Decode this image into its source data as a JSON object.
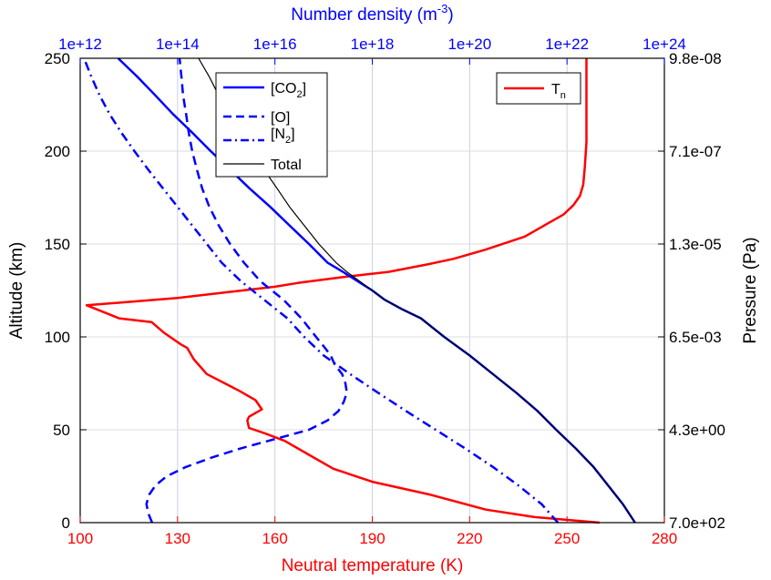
{
  "colors": {
    "temperature": "#ff0000",
    "density": "#0000ff",
    "total": "#000000",
    "axis": "#000000"
  },
  "chart_data": {
    "type": "line",
    "axes": {
      "left": {
        "label": "Altitude (km)",
        "range": [
          0,
          250
        ],
        "ticks": [
          "0",
          "50",
          "100",
          "150",
          "200",
          "250"
        ]
      },
      "right": {
        "label": "Pressure (Pa)",
        "ticks": [
          "7.0e+02",
          "4.3e+00",
          "6.5e-03",
          "1.3e-05",
          "7.1e-07",
          "9.8e-08"
        ]
      },
      "bottom": {
        "label": "Neutral temperature (K)",
        "range": [
          100,
          280
        ],
        "ticks": [
          "100",
          "130",
          "160",
          "190",
          "220",
          "250",
          "280"
        ]
      },
      "top": {
        "label_base": "Number density (m",
        "label_sup": "-3",
        "label_end": ")",
        "scale": "log",
        "range": [
          1000000000000.0,
          1e+24
        ],
        "ticks": [
          "1e+12",
          "1e+14",
          "1e+16",
          "1e+18",
          "1e+20",
          "1e+22",
          "1e+24"
        ]
      }
    },
    "grid": true,
    "legends": [
      {
        "position": "top-center",
        "entries": [
          {
            "series": "co2",
            "base": "[CO",
            "sub": "2",
            "end": "]"
          },
          {
            "series": "o",
            "base": "[O]",
            "sub": "",
            "end": ""
          },
          {
            "series": "n2",
            "base": "[N",
            "sub": "2",
            "end": "]"
          },
          {
            "series": "total",
            "base": "Total",
            "sub": "",
            "end": ""
          }
        ]
      },
      {
        "position": "top-right",
        "entries": [
          {
            "series": "tn",
            "base": "T",
            "sub": "n",
            "end": ""
          }
        ]
      }
    ],
    "series": [
      {
        "id": "tn",
        "axis": "temperature",
        "color": "#ff0000",
        "dash": "solid",
        "width": 2.5,
        "points": [
          [
            260,
            0
          ],
          [
            240,
            3
          ],
          [
            225,
            7
          ],
          [
            208,
            15
          ],
          [
            190,
            22
          ],
          [
            178,
            29
          ],
          [
            170,
            37
          ],
          [
            163,
            44
          ],
          [
            157,
            48
          ],
          [
            152,
            51
          ],
          [
            151.5,
            55
          ],
          [
            152,
            57
          ],
          [
            156,
            61
          ],
          [
            154,
            66
          ],
          [
            149,
            71
          ],
          [
            139,
            80
          ],
          [
            135,
            88
          ],
          [
            133,
            94
          ],
          [
            131,
            96
          ],
          [
            126,
            102
          ],
          [
            122,
            108
          ],
          [
            112,
            110
          ],
          [
            102,
            117
          ],
          [
            130,
            121
          ],
          [
            150,
            125
          ],
          [
            160,
            127
          ],
          [
            167,
            129
          ],
          [
            180,
            132
          ],
          [
            195,
            135
          ],
          [
            207,
            139
          ],
          [
            215,
            142
          ],
          [
            225,
            147
          ],
          [
            237,
            154
          ],
          [
            244,
            161
          ],
          [
            249,
            166
          ],
          [
            252,
            171
          ],
          [
            254,
            176
          ],
          [
            255,
            182
          ],
          [
            255.5,
            192
          ],
          [
            256,
            205
          ],
          [
            256,
            230
          ],
          [
            256,
            250
          ]
        ]
      },
      {
        "id": "co2",
        "axis": "density",
        "color": "#0000ff",
        "dash": "solid",
        "width": 2.5,
        "points": [
          [
            2.5e+23,
            0
          ],
          [
            1.4e+23,
            10
          ],
          [
            7e+22,
            20
          ],
          [
            3.5e+22,
            30
          ],
          [
            1.5e+22,
            40
          ],
          [
            6e+21,
            50
          ],
          [
            2.5e+21,
            60
          ],
          [
            9e+20,
            70
          ],
          [
            3e+20,
            80
          ],
          [
            1e+20,
            90
          ],
          [
            3e+19,
            100
          ],
          [
            1e+19,
            110
          ],
          [
            4e+18,
            115
          ],
          [
            1.8e+18,
            120
          ],
          [
            1e+18,
            125
          ],
          [
            5e+17,
            130
          ],
          [
            2.5e+17,
            135
          ],
          [
            1.2e+17,
            140
          ],
          [
            5e+16,
            150
          ],
          [
            2e+16,
            160
          ],
          [
            8000000000000000.0,
            170
          ],
          [
            3000000000000000.0,
            180
          ],
          [
            1200000000000000.0,
            190
          ],
          [
            480000000000000.0,
            200
          ],
          [
            200000000000000.0,
            210
          ],
          [
            80000000000000.0,
            220
          ],
          [
            35000000000000.0,
            230
          ],
          [
            15000000000000.0,
            240
          ],
          [
            6000000000000.0,
            250
          ]
        ]
      },
      {
        "id": "total",
        "axis": "density",
        "color": "#000000",
        "dash": "solid",
        "width": 1.2,
        "points": [
          [
            2.5e+23,
            0
          ],
          [
            1.4e+23,
            10
          ],
          [
            7e+22,
            20
          ],
          [
            3.5e+22,
            30
          ],
          [
            1.5e+22,
            40
          ],
          [
            6e+21,
            50
          ],
          [
            2.5e+21,
            60
          ],
          [
            9e+20,
            70
          ],
          [
            3e+20,
            80
          ],
          [
            1e+20,
            90
          ],
          [
            3e+19,
            100
          ],
          [
            1e+19,
            110
          ],
          [
            4e+18,
            115
          ],
          [
            1.8e+18,
            120
          ],
          [
            1e+18,
            125
          ],
          [
            5.5e+17,
            130
          ],
          [
            3e+17,
            135
          ],
          [
            1.8e+17,
            140
          ],
          [
            8e+16,
            150
          ],
          [
            4e+16,
            160
          ],
          [
            2e+16,
            170
          ],
          [
            1.1e+16,
            180
          ],
          [
            6000000000000000.0,
            190
          ],
          [
            3500000000000000.0,
            200
          ],
          [
            2000000000000000.0,
            210
          ],
          [
            1200000000000000.0,
            220
          ],
          [
            700000000000000.0,
            230
          ],
          [
            450000000000000.0,
            240
          ],
          [
            270000000000000.0,
            250
          ]
        ]
      },
      {
        "id": "o",
        "axis": "density",
        "color": "#0000ff",
        "dash": "dash",
        "width": 2.5,
        "points": [
          [
            30000000000000.0,
            0
          ],
          [
            25000000000000.0,
            5
          ],
          [
            23000000000000.0,
            10
          ],
          [
            26000000000000.0,
            15
          ],
          [
            35000000000000.0,
            20
          ],
          [
            60000000000000.0,
            25
          ],
          [
            150000000000000.0,
            30
          ],
          [
            500000000000000.0,
            35
          ],
          [
            2000000000000000.0,
            40
          ],
          [
            1e+16,
            45
          ],
          [
            5e+16,
            50
          ],
          [
            1.2e+17,
            55
          ],
          [
            2e+17,
            60
          ],
          [
            2.6e+17,
            65
          ],
          [
            3e+17,
            70
          ],
          [
            2.8e+17,
            75
          ],
          [
            2.4e+17,
            80
          ],
          [
            1.7e+17,
            85
          ],
          [
            1.4e+17,
            90
          ],
          [
            1e+17,
            95
          ],
          [
            7e+16,
            100
          ],
          [
            3.5e+16,
            110
          ],
          [
            1.5e+16,
            120
          ],
          [
            5000000000000000.0,
            130
          ],
          [
            2300000000000000.0,
            140
          ],
          [
            1200000000000000.0,
            150
          ],
          [
            700000000000000.0,
            160
          ],
          [
            450000000000000.0,
            170
          ],
          [
            320000000000000.0,
            180
          ],
          [
            250000000000000.0,
            190
          ],
          [
            200000000000000.0,
            200
          ],
          [
            170000000000000.0,
            210
          ],
          [
            150000000000000.0,
            220
          ],
          [
            130000000000000.0,
            230
          ],
          [
            120000000000000.0,
            240
          ],
          [
            110000000000000.0,
            250
          ]
        ]
      },
      {
        "id": "n2",
        "axis": "density",
        "color": "#0000ff",
        "dash": "dashdot",
        "width": 2.5,
        "points": [
          [
            6.5e+21,
            0
          ],
          [
            3e+21,
            10
          ],
          [
            1e+21,
            20
          ],
          [
            3e+20,
            30
          ],
          [
            8e+19,
            40
          ],
          [
            2e+19,
            50
          ],
          [
            5e+18,
            60
          ],
          [
            1.3e+18,
            70
          ],
          [
            3.5e+17,
            80
          ],
          [
            1e+17,
            90
          ],
          [
            4e+16,
            100
          ],
          [
            1.8e+16,
            110
          ],
          [
            6000000000000000.0,
            120
          ],
          [
            2000000000000000.0,
            130
          ],
          [
            800000000000000.0,
            140
          ],
          [
            400000000000000.0,
            150
          ],
          [
            200000000000000.0,
            160
          ],
          [
            100000000000000.0,
            170
          ],
          [
            50000000000000.0,
            180
          ],
          [
            25000000000000.0,
            190
          ],
          [
            13000000000000.0,
            200
          ],
          [
            7000000000000.0,
            210
          ],
          [
            4000000000000.0,
            220
          ],
          [
            2500000000000.0,
            230
          ],
          [
            1700000000000.0,
            240
          ],
          [
            1200000000000.0,
            250
          ]
        ]
      }
    ]
  }
}
